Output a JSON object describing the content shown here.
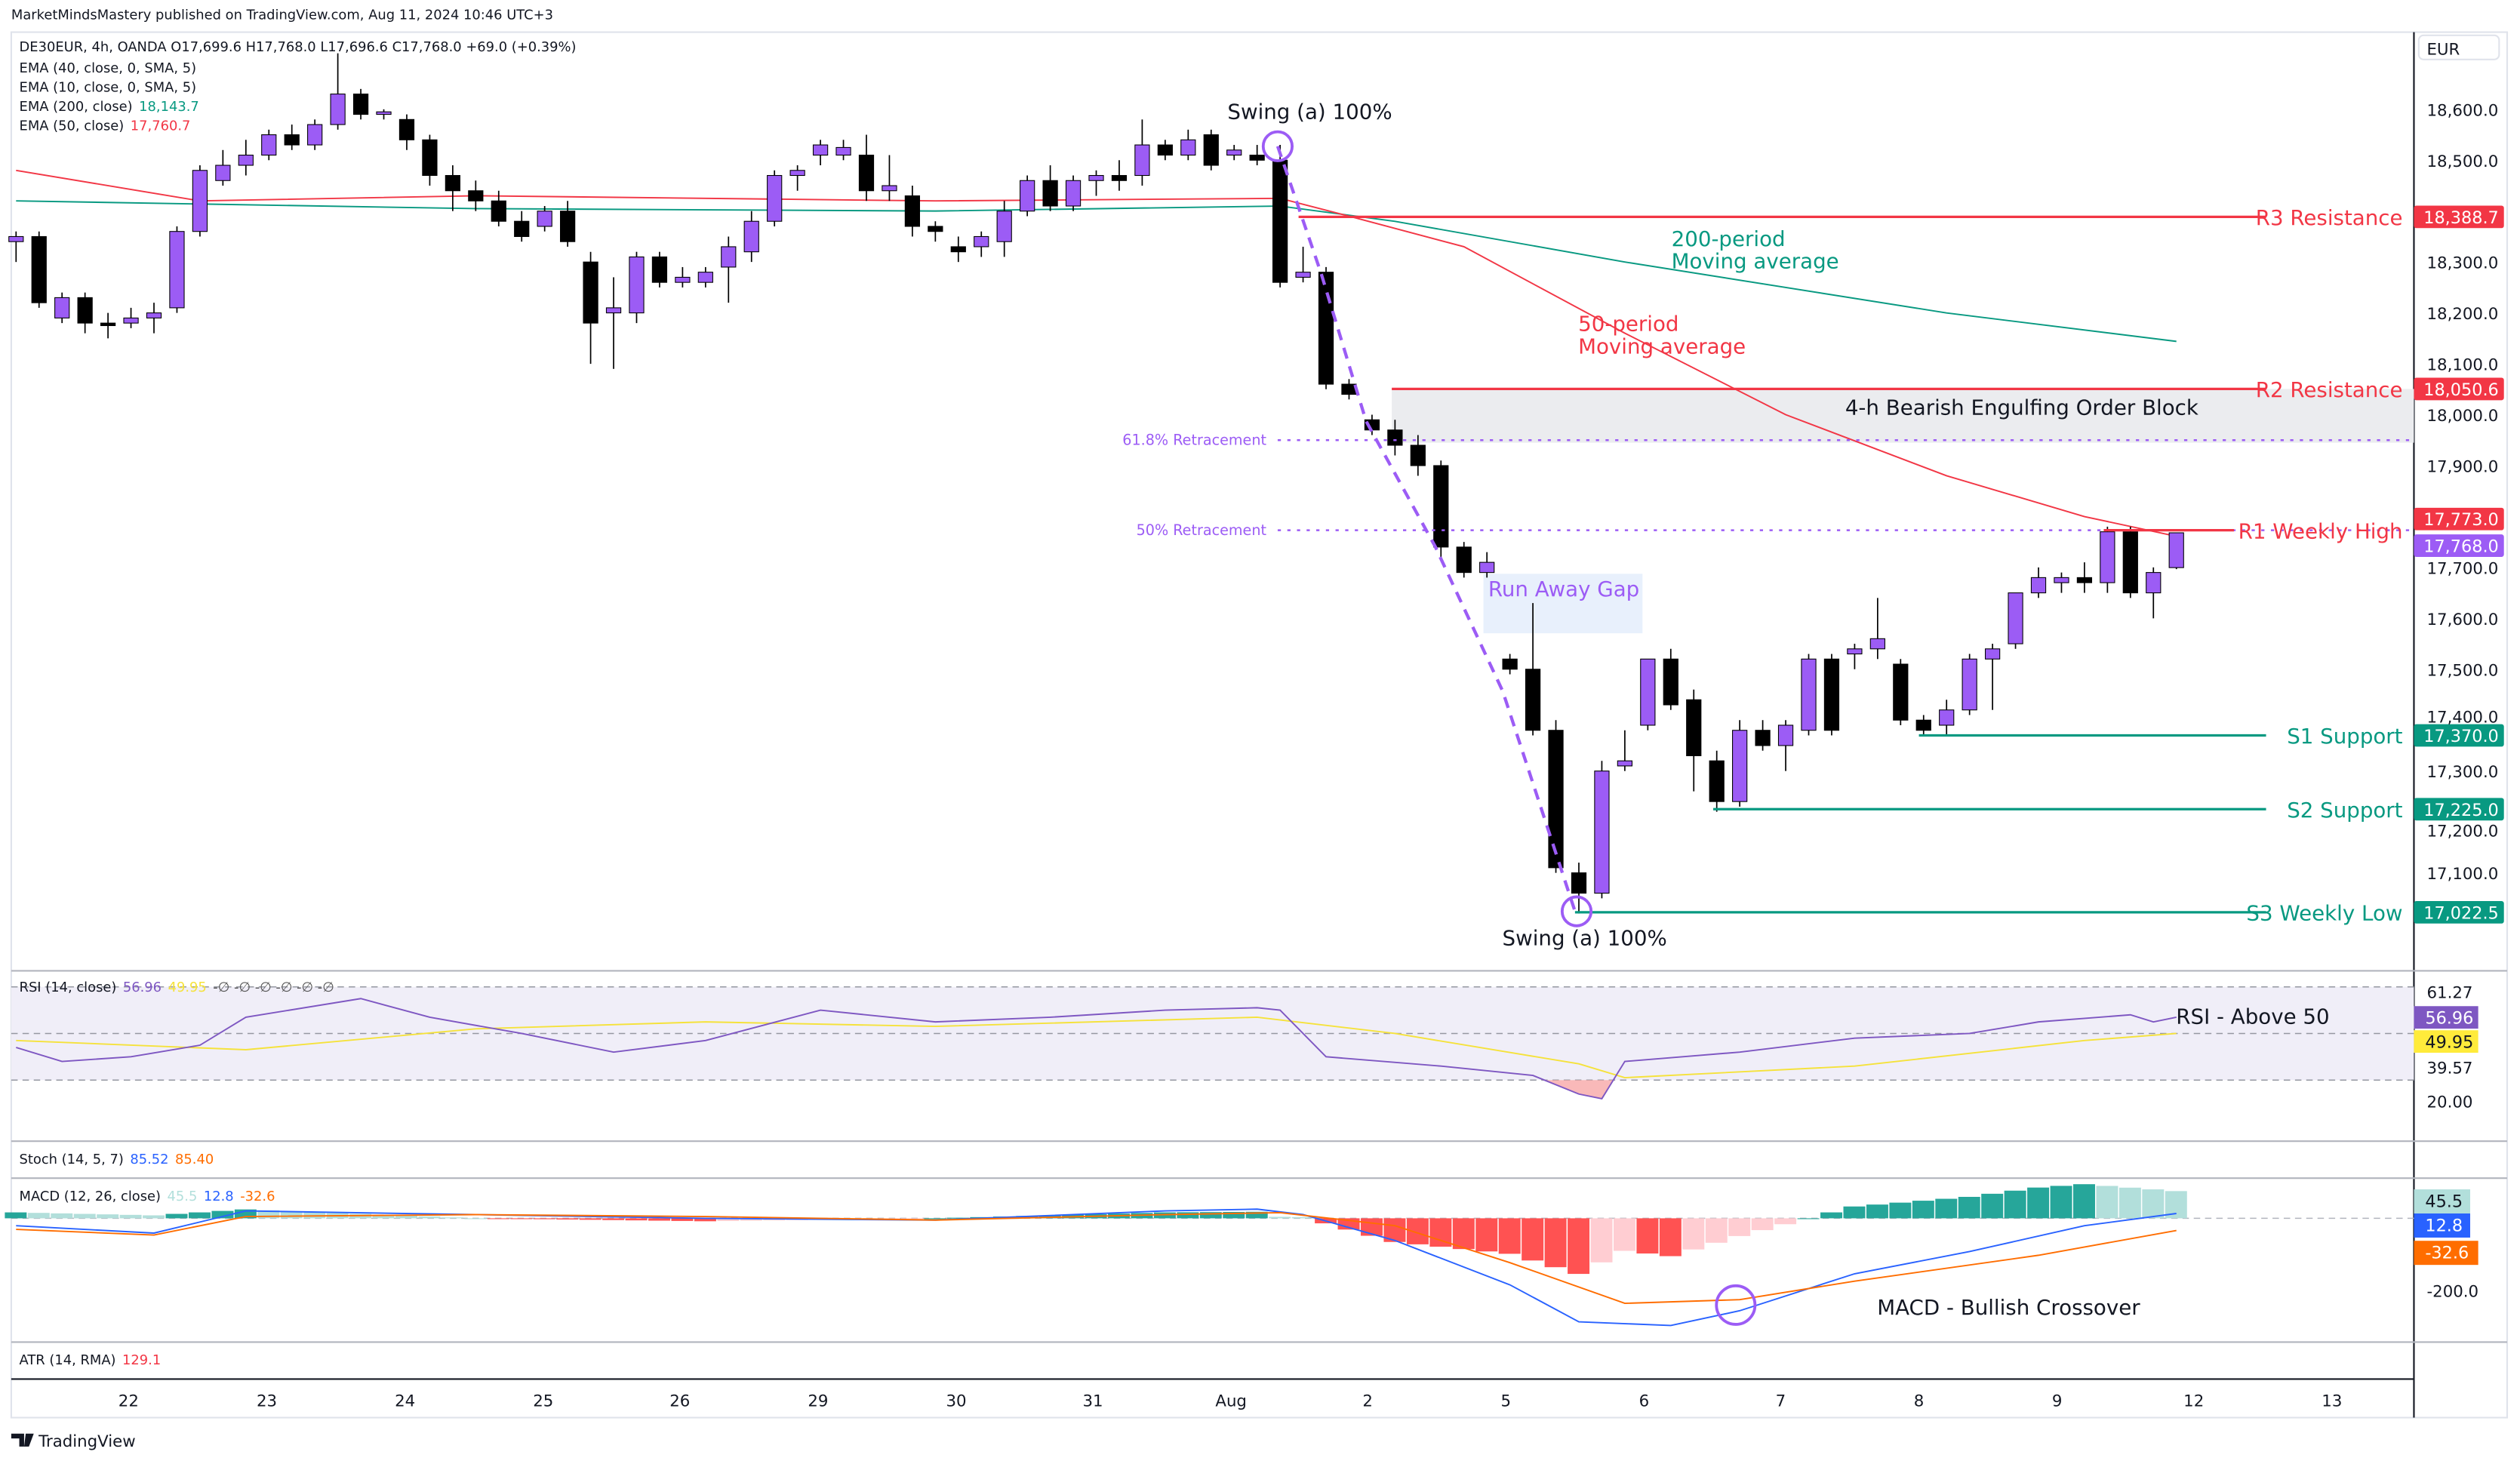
{
  "header": {
    "published": "MarketMindsMastery published on TradingView.com, Aug 11, 2024 10:46 UTC+3"
  },
  "legend": {
    "symbol": "DE30EUR, 4h, OANDA  O17,699.6  H17,768.0  L17,696.6  C17,768.0  +69.0 (+0.39%)",
    "ema40": "EMA (40, close, 0, SMA, 5)",
    "ema10": "EMA (10, close, 0, SMA, 5)",
    "ema200_label": "EMA (200, close)",
    "ema200_value": "18,143.7",
    "ema50_label": "EMA (50, close)",
    "ema50_value": "17,760.7"
  },
  "currency": "EUR",
  "price_axis": [
    "18,600.0",
    "18,500.0",
    "18,300.0",
    "18,200.0",
    "18,100.0",
    "18,000.0",
    "17,900.0",
    "17,700.0",
    "17,600.0",
    "17,500.0",
    "17,400.0",
    "17,300.0",
    "17,200.0",
    "17,100.0"
  ],
  "levels": [
    {
      "name": "r3",
      "label": "R3 Resistance",
      "value": 18388.7,
      "value_text": "18,388.7",
      "color": "#f23645"
    },
    {
      "name": "r2",
      "label": "R2 Resistance",
      "value": 18050.6,
      "value_text": "18,050.6",
      "color": "#f23645"
    },
    {
      "name": "r1",
      "label": "R1 Weekly High",
      "value": 17773.0,
      "value_text": "17,773.0",
      "color": "#f23645"
    },
    {
      "name": "s1",
      "label": "S1 Support",
      "value": 17370.0,
      "value_text": "17,370.0",
      "color": "#089981"
    },
    {
      "name": "s2",
      "label": "S2 Support",
      "value": 17225.0,
      "value_text": "17,225.0",
      "color": "#089981"
    },
    {
      "name": "s3",
      "label": "S3 Weekly Low",
      "value": 17022.5,
      "value_text": "17,022.5",
      "color": "#089981"
    }
  ],
  "last_price": {
    "value": 17768.0,
    "text": "17,768.0",
    "color": "#9c5cf5"
  },
  "annotations": {
    "swing_top": "Swing (a) 100%",
    "swing_bottom": "Swing (a) 100%",
    "ma200": [
      "200-period",
      "Moving average"
    ],
    "ma50": [
      "50-period",
      "Moving average"
    ],
    "order_block": "4-h Bearish Engulfing Order Block",
    "fib618": "61.8% Retracement",
    "fib50": "50% Retracement",
    "gap": "Run Away Gap",
    "rsi_note": "RSI - Above 50",
    "macd_note": "MACD - Bullish Crossover"
  },
  "rsi": {
    "legend": "RSI (14, close)",
    "value": "56.96",
    "ma_value": "49.95",
    "extra": "-∅ -∅ -∅ -∅ -∅ -∅",
    "axis": [
      "61.27",
      "39.57",
      "20.00"
    ]
  },
  "stoch": {
    "legend": "Stoch (14, 5, 7)",
    "k": "85.52",
    "d": "85.40"
  },
  "macd": {
    "legend": "MACD (12, 26, close)",
    "hist": "45.5",
    "macd": "12.8",
    "signal": "-32.6",
    "axis": [
      "-200.0"
    ]
  },
  "atr": {
    "legend": "ATR (14, RMA)",
    "value": "129.1"
  },
  "time_axis": [
    "22",
    "23",
    "24",
    "25",
    "26",
    "29",
    "30",
    "31",
    "Aug",
    "2",
    "5",
    "6",
    "7",
    "8",
    "9",
    "12",
    "13"
  ],
  "brand": "TradingView",
  "chart_data": {
    "type": "candlestick",
    "title": "DE30EUR, 4h, OANDA",
    "ylabel": "EUR",
    "ylim": [
      16980,
      18760
    ],
    "candles_ohlc": [
      [
        18340,
        18360,
        18300,
        18350
      ],
      [
        18350,
        18360,
        18210,
        18220
      ],
      [
        18190,
        18240,
        18180,
        18230
      ],
      [
        18230,
        18240,
        18160,
        18180
      ],
      [
        18180,
        18200,
        18150,
        18175
      ],
      [
        18180,
        18210,
        18170,
        18190
      ],
      [
        18190,
        18220,
        18160,
        18200
      ],
      [
        18210,
        18370,
        18200,
        18360
      ],
      [
        18360,
        18490,
        18350,
        18480
      ],
      [
        18460,
        18520,
        18450,
        18490
      ],
      [
        18490,
        18540,
        18470,
        18510
      ],
      [
        18510,
        18560,
        18500,
        18550
      ],
      [
        18550,
        18570,
        18520,
        18530
      ],
      [
        18530,
        18580,
        18520,
        18570
      ],
      [
        18570,
        18710,
        18560,
        18630
      ],
      [
        18630,
        18640,
        18580,
        18590
      ],
      [
        18590,
        18600,
        18580,
        18595
      ],
      [
        18580,
        18590,
        18520,
        18540
      ],
      [
        18540,
        18550,
        18450,
        18470
      ],
      [
        18470,
        18490,
        18400,
        18440
      ],
      [
        18440,
        18460,
        18400,
        18420
      ],
      [
        18420,
        18440,
        18370,
        18380
      ],
      [
        18380,
        18400,
        18340,
        18350
      ],
      [
        18370,
        18410,
        18360,
        18400
      ],
      [
        18400,
        18420,
        18330,
        18340
      ],
      [
        18300,
        18320,
        18100,
        18180
      ],
      [
        18200,
        18270,
        18090,
        18210
      ],
      [
        18200,
        18320,
        18180,
        18310
      ],
      [
        18310,
        18320,
        18250,
        18260
      ],
      [
        18260,
        18290,
        18250,
        18270
      ],
      [
        18260,
        18290,
        18250,
        18280
      ],
      [
        18290,
        18350,
        18220,
        18330
      ],
      [
        18320,
        18400,
        18300,
        18380
      ],
      [
        18380,
        18480,
        18370,
        18470
      ],
      [
        18470,
        18490,
        18440,
        18480
      ],
      [
        18510,
        18540,
        18490,
        18530
      ],
      [
        18510,
        18540,
        18500,
        18525
      ],
      [
        18510,
        18550,
        18420,
        18440
      ],
      [
        18440,
        18510,
        18420,
        18450
      ],
      [
        18430,
        18450,
        18350,
        18370
      ],
      [
        18370,
        18380,
        18340,
        18360
      ],
      [
        18330,
        18350,
        18300,
        18320
      ],
      [
        18330,
        18360,
        18310,
        18350
      ],
      [
        18340,
        18420,
        18310,
        18400
      ],
      [
        18400,
        18470,
        18390,
        18460
      ],
      [
        18460,
        18490,
        18400,
        18410
      ],
      [
        18410,
        18470,
        18400,
        18460
      ],
      [
        18460,
        18480,
        18430,
        18470
      ],
      [
        18470,
        18500,
        18440,
        18460
      ],
      [
        18470,
        18580,
        18450,
        18530
      ],
      [
        18530,
        18540,
        18500,
        18510
      ],
      [
        18510,
        18560,
        18500,
        18540
      ],
      [
        18550,
        18560,
        18480,
        18490
      ],
      [
        18510,
        18530,
        18500,
        18520
      ],
      [
        18510,
        18530,
        18490,
        18500
      ],
      [
        18500,
        18530,
        18250,
        18260
      ],
      [
        18270,
        18330,
        18260,
        18280
      ],
      [
        18280,
        18290,
        18050,
        18060
      ],
      [
        18060,
        18070,
        18030,
        18040
      ],
      [
        17990,
        18000,
        17960,
        17970
      ],
      [
        17970,
        17990,
        17920,
        17940
      ],
      [
        17940,
        17960,
        17880,
        17900
      ],
      [
        17900,
        17910,
        17720,
        17740
      ],
      [
        17740,
        17750,
        17680,
        17690
      ],
      [
        17690,
        17730,
        17680,
        17710
      ],
      [
        17520,
        17530,
        17490,
        17500
      ],
      [
        17500,
        17630,
        17370,
        17380
      ],
      [
        17380,
        17400,
        17100,
        17110
      ],
      [
        17100,
        17120,
        17020,
        17060
      ],
      [
        17060,
        17320,
        17050,
        17300
      ],
      [
        17310,
        17380,
        17300,
        17320
      ],
      [
        17390,
        17520,
        17380,
        17520
      ],
      [
        17520,
        17540,
        17420,
        17430
      ],
      [
        17440,
        17460,
        17260,
        17330
      ],
      [
        17320,
        17340,
        17220,
        17240
      ],
      [
        17240,
        17400,
        17230,
        17380
      ],
      [
        17380,
        17400,
        17340,
        17350
      ],
      [
        17350,
        17400,
        17300,
        17390
      ],
      [
        17380,
        17530,
        17370,
        17520
      ],
      [
        17520,
        17530,
        17370,
        17380
      ],
      [
        17530,
        17550,
        17500,
        17540
      ],
      [
        17540,
        17640,
        17520,
        17560
      ],
      [
        17510,
        17520,
        17390,
        17400
      ],
      [
        17400,
        17410,
        17370,
        17380
      ],
      [
        17390,
        17440,
        17370,
        17420
      ],
      [
        17420,
        17530,
        17410,
        17520
      ],
      [
        17520,
        17550,
        17420,
        17540
      ],
      [
        17550,
        17650,
        17540,
        17650
      ],
      [
        17650,
        17700,
        17640,
        17680
      ],
      [
        17670,
        17690,
        17650,
        17680
      ],
      [
        17680,
        17710,
        17650,
        17670
      ],
      [
        17670,
        17780,
        17650,
        17770
      ],
      [
        17770,
        17780,
        17640,
        17650
      ],
      [
        17650,
        17700,
        17600,
        17690
      ],
      [
        17699.6,
        17768,
        17696.6,
        17768
      ]
    ],
    "ema50_points": [
      [
        0,
        18480
      ],
      [
        8,
        18420
      ],
      [
        20,
        18430
      ],
      [
        40,
        18420
      ],
      [
        55,
        18425
      ],
      [
        58,
        18390
      ],
      [
        63,
        18330
      ],
      [
        70,
        18160
      ],
      [
        77,
        18000
      ],
      [
        84,
        17880
      ],
      [
        90,
        17800
      ],
      [
        94,
        17761
      ]
    ],
    "ema200_points": [
      [
        0,
        18420
      ],
      [
        20,
        18405
      ],
      [
        40,
        18400
      ],
      [
        55,
        18410
      ],
      [
        60,
        18380
      ],
      [
        70,
        18300
      ],
      [
        84,
        18200
      ],
      [
        94,
        18144
      ]
    ],
    "rsi_points": [
      [
        0,
        44
      ],
      [
        2,
        38
      ],
      [
        5,
        40
      ],
      [
        8,
        45
      ],
      [
        10,
        57
      ],
      [
        15,
        65
      ],
      [
        18,
        57
      ],
      [
        22,
        50
      ],
      [
        26,
        42
      ],
      [
        30,
        47
      ],
      [
        35,
        60
      ],
      [
        40,
        55
      ],
      [
        45,
        57
      ],
      [
        50,
        60
      ],
      [
        54,
        61
      ],
      [
        55,
        60
      ],
      [
        57,
        40
      ],
      [
        62,
        36
      ],
      [
        66,
        32
      ],
      [
        68,
        24
      ],
      [
        69,
        22
      ],
      [
        70,
        38
      ],
      [
        75,
        42
      ],
      [
        80,
        48
      ],
      [
        85,
        50
      ],
      [
        88,
        55
      ],
      [
        92,
        58
      ],
      [
        93,
        55
      ],
      [
        94,
        57
      ]
    ],
    "rsi_ma_points": [
      [
        0,
        47
      ],
      [
        10,
        43
      ],
      [
        20,
        52
      ],
      [
        30,
        55
      ],
      [
        40,
        53
      ],
      [
        54,
        57
      ],
      [
        60,
        50
      ],
      [
        68,
        37
      ],
      [
        70,
        31
      ],
      [
        80,
        36
      ],
      [
        90,
        47
      ],
      [
        94,
        50
      ]
    ],
    "macd_points": [
      [
        0,
        -20
      ],
      [
        6,
        -40
      ],
      [
        10,
        20
      ],
      [
        20,
        10
      ],
      [
        30,
        0
      ],
      [
        40,
        -5
      ],
      [
        50,
        20
      ],
      [
        54,
        25
      ],
      [
        56,
        10
      ],
      [
        60,
        -60
      ],
      [
        65,
        -180
      ],
      [
        68,
        -280
      ],
      [
        72,
        -290
      ],
      [
        75,
        -250
      ],
      [
        80,
        -150
      ],
      [
        85,
        -90
      ],
      [
        90,
        -20
      ],
      [
        94,
        13
      ]
    ],
    "signal_points": [
      [
        0,
        -30
      ],
      [
        6,
        -45
      ],
      [
        10,
        5
      ],
      [
        20,
        10
      ],
      [
        30,
        5
      ],
      [
        40,
        -5
      ],
      [
        50,
        10
      ],
      [
        55,
        15
      ],
      [
        60,
        -20
      ],
      [
        65,
        -120
      ],
      [
        70,
        -230
      ],
      [
        75,
        -220
      ],
      [
        80,
        -170
      ],
      [
        88,
        -100
      ],
      [
        94,
        -33
      ]
    ],
    "fib_levels": [
      {
        "label": "61.8%",
        "value": 17950
      },
      {
        "label": "50%",
        "value": 17773
      }
    ],
    "order_block": [
      17945,
      18050.6
    ]
  }
}
